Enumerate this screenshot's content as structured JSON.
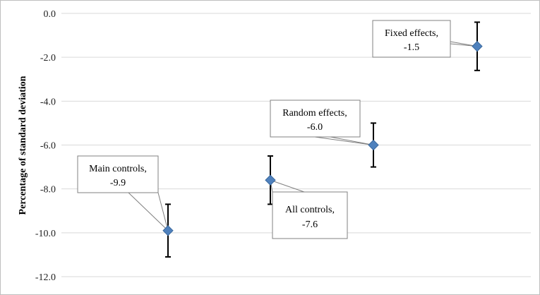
{
  "chart_data": {
    "type": "scatter",
    "title": "",
    "xlabel": "",
    "ylabel": "Percentage of standard deviation",
    "ylim": [
      -12.0,
      0.0
    ],
    "yticks": [
      "0.0",
      "-2.0",
      "-4.0",
      "-6.0",
      "-8.0",
      "-10.0",
      "-12.0"
    ],
    "ytick_values": [
      0,
      -2,
      -4,
      -6,
      -8,
      -10,
      -12
    ],
    "grid": true,
    "marker": "diamond",
    "marker_color": "#4f81bd",
    "points": [
      {
        "label": "Main controls,",
        "value_text": "-9.9",
        "value": -9.9,
        "err_low": -11.1,
        "err_high": -8.7
      },
      {
        "label": "All controls,",
        "value_text": "-7.6",
        "value": -7.6,
        "err_low": -8.7,
        "err_high": -6.5
      },
      {
        "label": "Random effects,",
        "value_text": "-6.0",
        "value": -6.0,
        "err_low": -7.0,
        "err_high": -5.0
      },
      {
        "label": "Fixed effects,",
        "value_text": "-1.5",
        "value": -1.5,
        "err_low": -2.6,
        "err_high": -0.4
      }
    ]
  }
}
